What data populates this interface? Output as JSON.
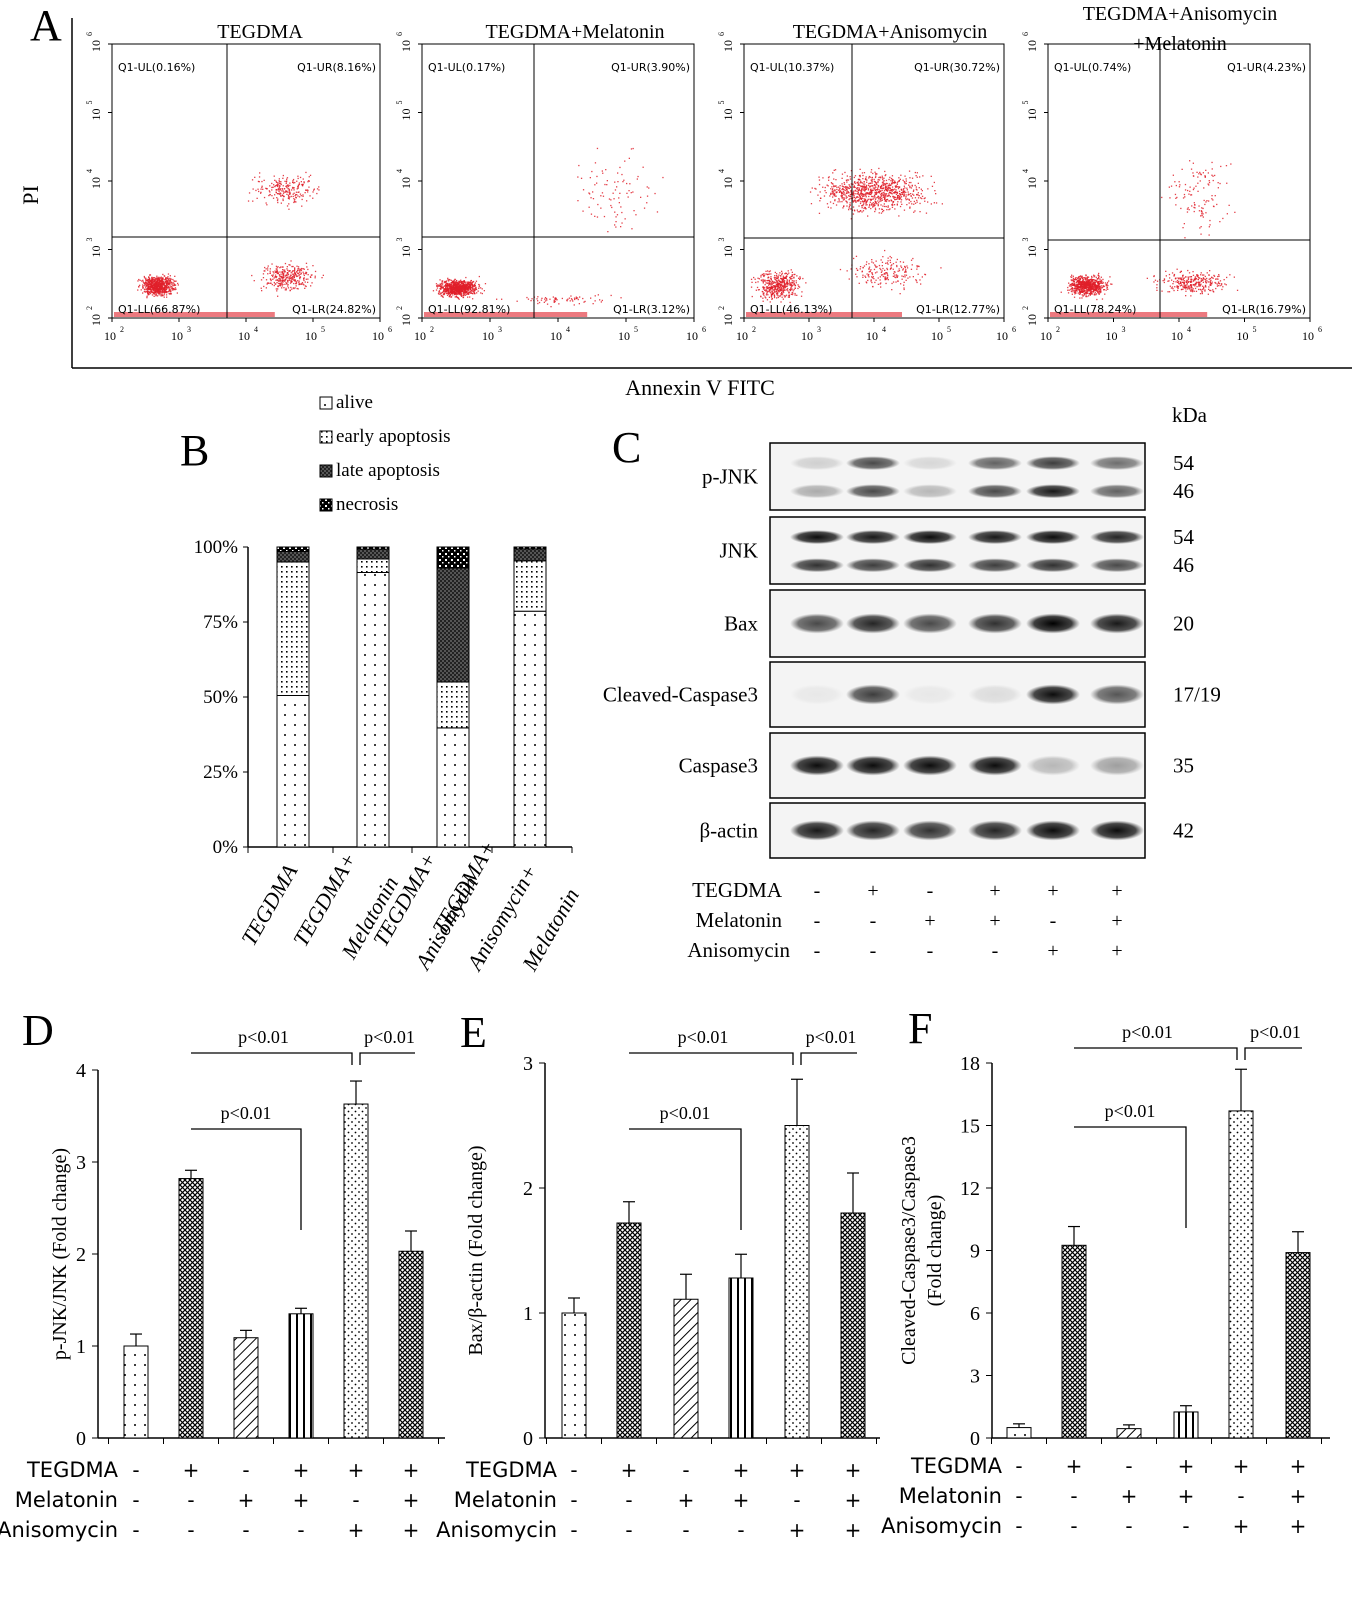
{
  "panel_labels": {
    "A": "A",
    "B": "B",
    "C": "C",
    "D": "D",
    "E": "E",
    "F": "F"
  },
  "flow": {
    "ylabel": "PI",
    "xlabel": "Annexin V FITC",
    "xticks": [
      "10",
      "10",
      "10",
      "10",
      "10"
    ],
    "panels": [
      {
        "title": "TEGDMA",
        "title2": "",
        "UL": "Q1-UL(0.16%)",
        "UR": "Q1-UR(8.16%)",
        "LL": "Q1-LL(66.87%)",
        "LR": "Q1-LR(24.82%)"
      },
      {
        "title": "TEGDMA+Melatonin",
        "title2": "",
        "UL": "Q1-UL(0.17%)",
        "UR": "Q1-UR(3.90%)",
        "LL": "Q1-LL(92.81%)",
        "LR": "Q1-LR(3.12%)"
      },
      {
        "title": "TEGDMA+Anisomycin",
        "title2": "",
        "UL": "Q1-UL(10.37%)",
        "UR": "Q1-UR(30.72%)",
        "LL": "Q1-LL(46.13%)",
        "LR": "Q1-LR(12.77%)"
      },
      {
        "title": "TEGDMA+Anisomycin",
        "title2": "+Melatonin",
        "UL": "Q1-UL(0.74%)",
        "UR": "Q1-UR(4.23%)",
        "LL": "Q1-LL(78.24%)",
        "LR": "Q1-LR(16.79%)"
      }
    ]
  },
  "chart_data": [
    {
      "type": "bar",
      "stacked": true,
      "yticks": [
        "0%",
        "25%",
        "50%",
        "75%",
        "100%"
      ],
      "ylim": [
        0,
        100
      ],
      "categories": [
        "TEGDMA",
        "TEGDMA+\nMelatonin",
        "TEGDMA+\nAnisomycin",
        "TEGDMA+\nAnisomycin+\nMelatonin"
      ],
      "series": [
        {
          "name": "alive",
          "values": [
            50.5,
            91.5,
            39.7,
            78.6
          ]
        },
        {
          "name": "early apoptosis",
          "values": [
            44.5,
            4.5,
            15.3,
            16.8
          ]
        },
        {
          "name": "late apoptosis",
          "values": [
            3.5,
            3.3,
            38.0,
            4.0
          ]
        },
        {
          "name": "necrosis",
          "values": [
            1.5,
            0.7,
            7.0,
            0.6
          ]
        }
      ],
      "legend_position": "top"
    },
    {
      "type": "bar",
      "ylabel": "p-JNK/JNK (Fold change)",
      "ylim": [
        0,
        4
      ],
      "yticks": [
        "0",
        "1",
        "2",
        "3",
        "4"
      ],
      "values": [
        1.0,
        2.82,
        1.09,
        1.35,
        3.63,
        2.03
      ],
      "errors": [
        0.13,
        0.09,
        0.08,
        0.06,
        0.25,
        0.22
      ],
      "annotations": [
        "p<0.01",
        "p<0.01",
        "p<0.01"
      ]
    },
    {
      "type": "bar",
      "ylabel": "Bax/β-actin (Fold change)",
      "ylim": [
        0,
        3
      ],
      "yticks": [
        "0",
        "1",
        "2",
        "3"
      ],
      "values": [
        1.0,
        1.72,
        1.11,
        1.28,
        2.5,
        1.8
      ],
      "errors": [
        0.12,
        0.17,
        0.2,
        0.19,
        0.37,
        0.32
      ],
      "annotations": [
        "p<0.01",
        "p<0.01",
        "p<0.01"
      ]
    },
    {
      "type": "bar",
      "ylabel": "Cleaved-Caspase3/Caspase3",
      "ylabel2": "(Fold change)",
      "ylim": [
        0,
        18
      ],
      "yticks": [
        "0",
        "3",
        "6",
        "9",
        "12",
        "15",
        "18"
      ],
      "values": [
        0.5,
        9.25,
        0.45,
        1.25,
        15.7,
        8.9
      ],
      "errors": [
        0.18,
        0.9,
        0.18,
        0.3,
        2.0,
        1.0
      ],
      "annotations": [
        "p<0.01",
        "p<0.01",
        "p<0.01"
      ]
    }
  ],
  "treatments": {
    "rows": [
      {
        "label": "TEGDMA",
        "signs": [
          "-",
          "+",
          "-",
          "+",
          "+",
          "+"
        ]
      },
      {
        "label": "Melatonin",
        "signs": [
          "-",
          "-",
          "+",
          "+",
          "-",
          "+"
        ]
      },
      {
        "label": "Anisomycin",
        "signs": [
          "-",
          "-",
          "-",
          "-",
          "+",
          "+"
        ]
      }
    ]
  },
  "blot": {
    "kda_label": "kDa",
    "rows": [
      {
        "label": "p-JNK",
        "kda": [
          "54",
          "46"
        ],
        "intensity": [
          [
            0.15,
            0.7,
            0.12,
            0.6,
            0.75,
            0.55
          ],
          [
            0.3,
            0.7,
            0.25,
            0.7,
            0.9,
            0.6
          ]
        ]
      },
      {
        "label": "JNK",
        "kda": [
          "54",
          "46"
        ],
        "intensity": [
          [
            0.95,
            0.9,
            0.95,
            0.9,
            0.95,
            0.85
          ],
          [
            0.8,
            0.75,
            0.8,
            0.75,
            0.8,
            0.7
          ]
        ]
      },
      {
        "label": "Bax",
        "kda": [
          "20"
        ],
        "intensity": [
          [
            0.7,
            0.85,
            0.7,
            0.8,
            1.0,
            0.9
          ]
        ]
      },
      {
        "label": "Cleaved-Caspase3",
        "kda": [
          "17/19"
        ],
        "intensity": [
          [
            0.05,
            0.75,
            0.05,
            0.1,
            0.95,
            0.65
          ]
        ]
      },
      {
        "label": "Caspase3",
        "kda": [
          "35"
        ],
        "intensity": [
          [
            0.95,
            0.95,
            0.95,
            0.95,
            0.25,
            0.35
          ]
        ]
      },
      {
        "label": "β-actin",
        "kda": [
          "42"
        ],
        "intensity": [
          [
            0.9,
            0.85,
            0.8,
            0.85,
            0.95,
            0.95
          ]
        ]
      }
    ]
  }
}
